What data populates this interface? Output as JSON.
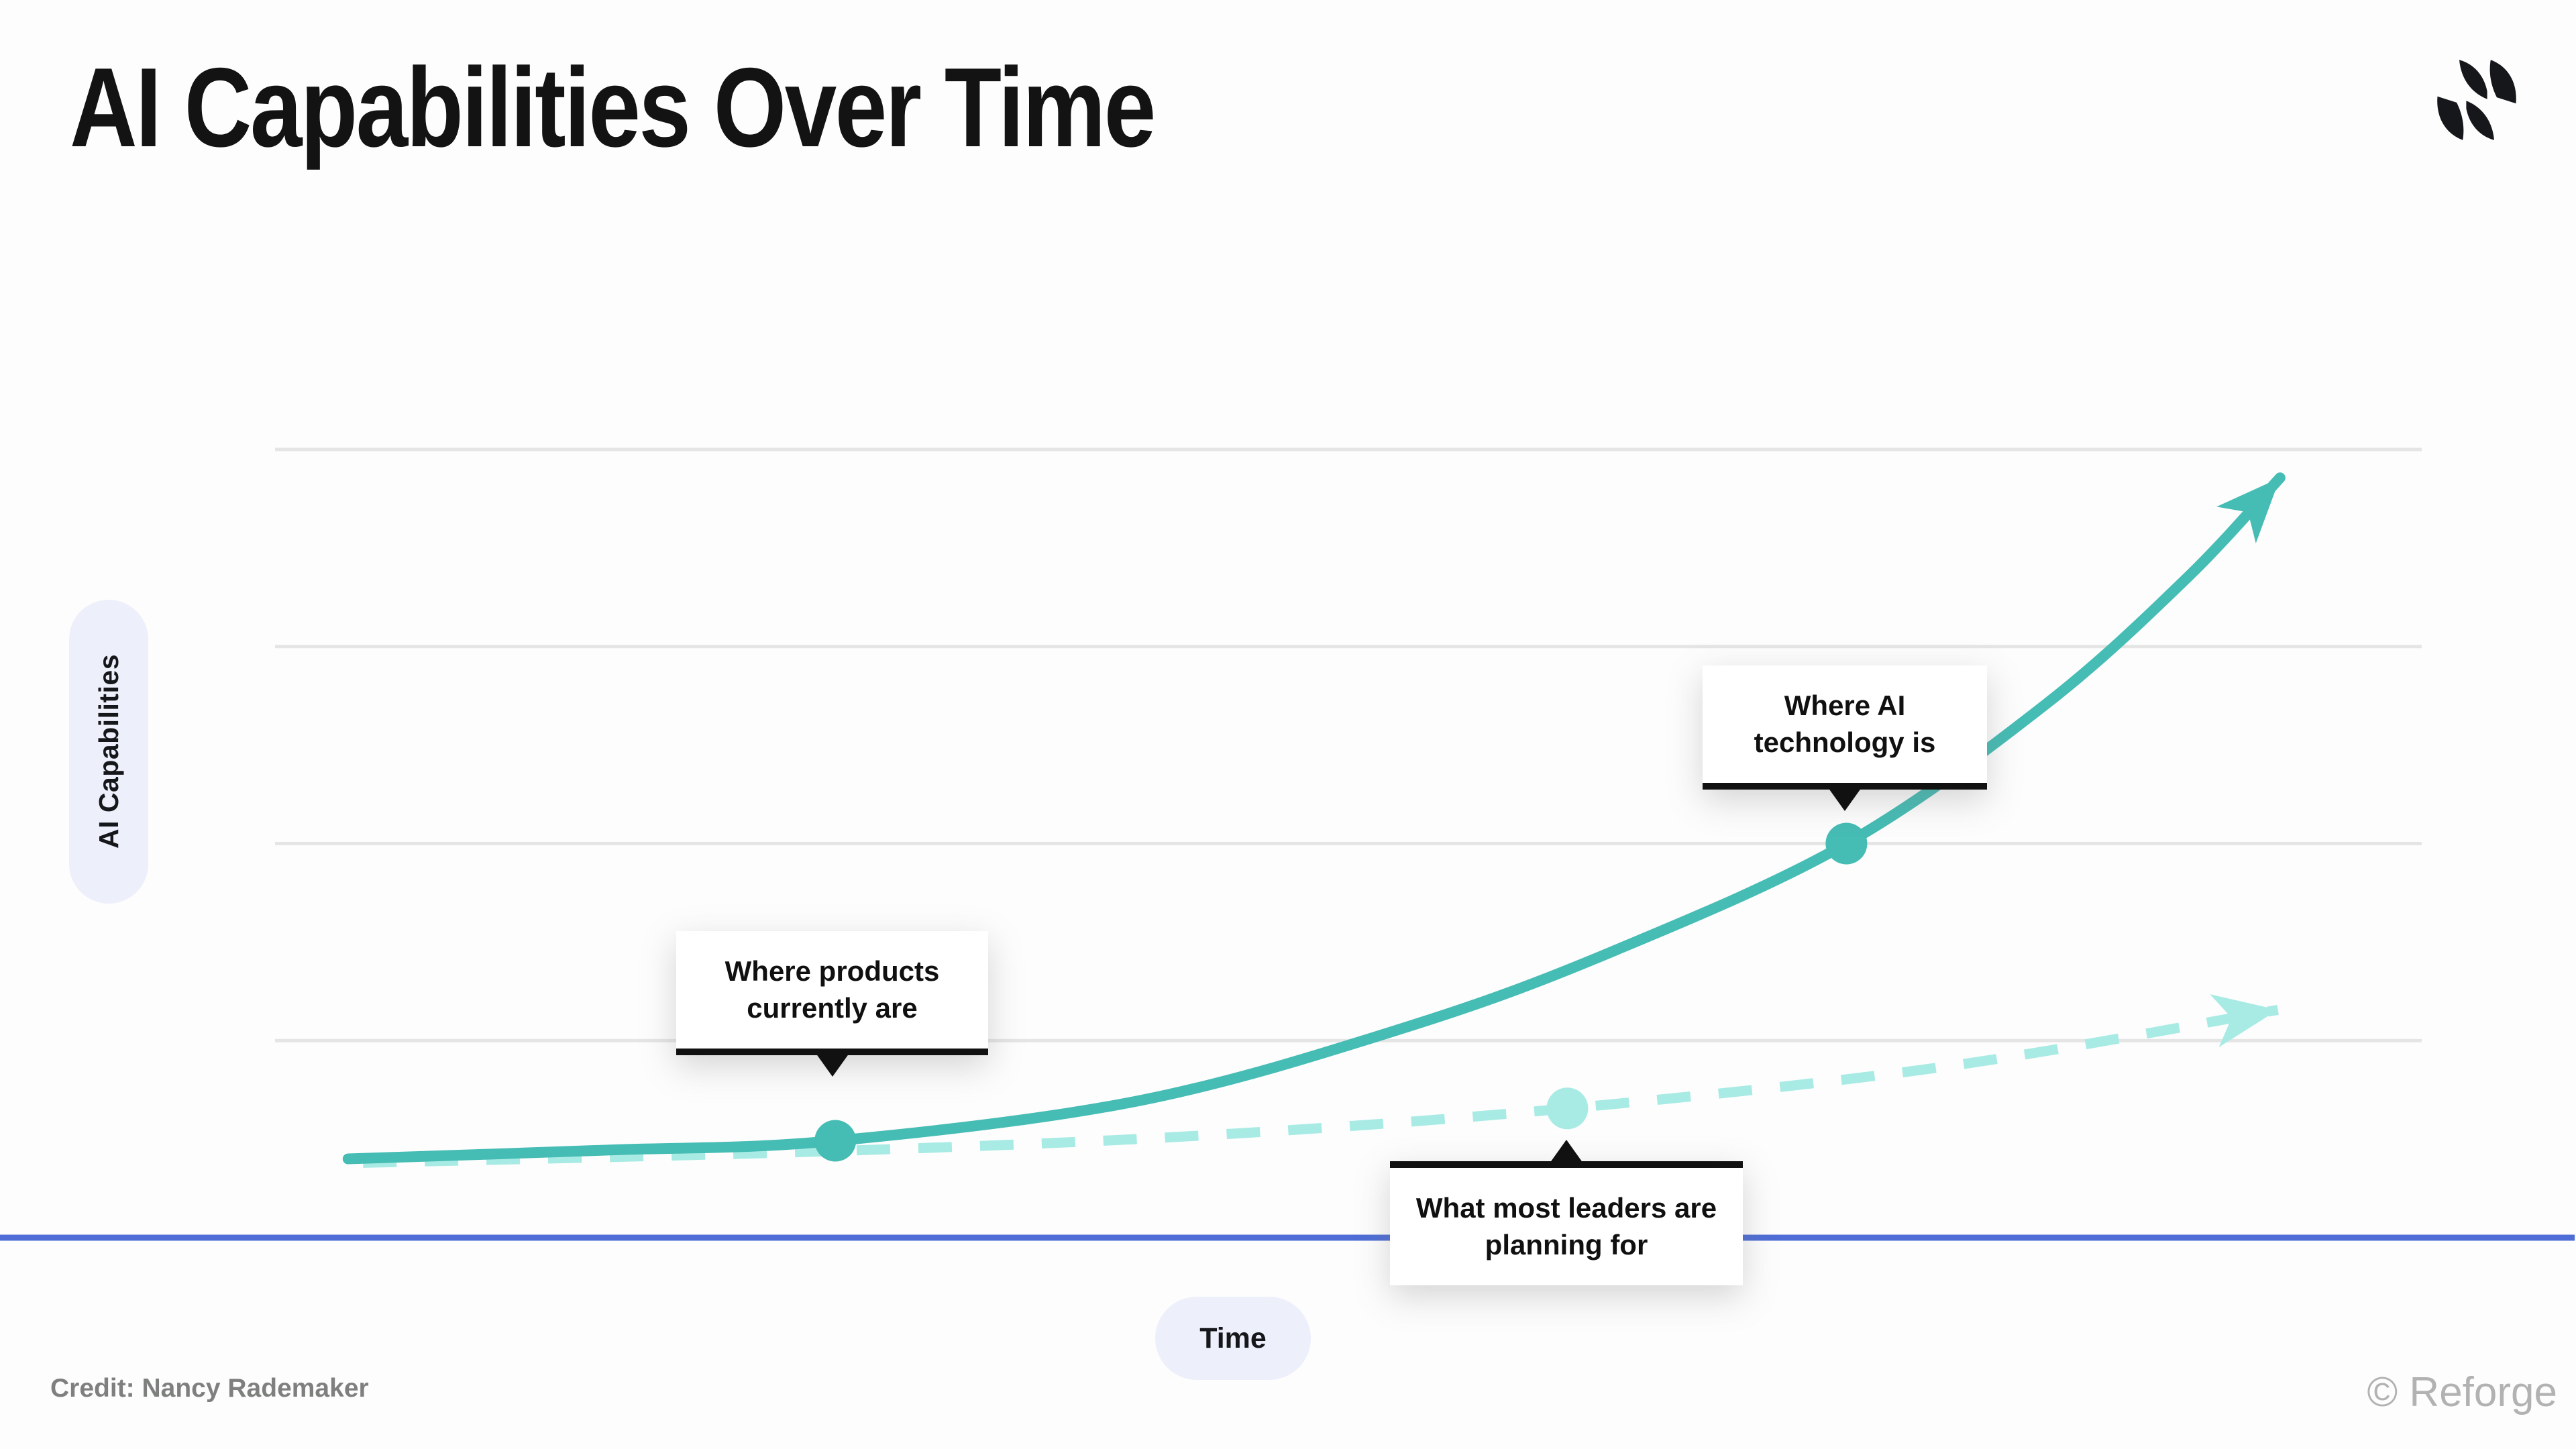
{
  "slide": {
    "title": "AI Capabilities Over Time",
    "credit": "Credit: Nancy Rademaker",
    "copyright": "© Reforge"
  },
  "chart": {
    "y_axis_label": "AI Capabilities",
    "x_axis_label": "Time"
  },
  "annotations": {
    "products": "Where products currently are",
    "ai_tech": "Where AI technology is",
    "leaders": "What most leaders are planning for"
  },
  "colors": {
    "background": "#FDFDFD",
    "title": "#131313",
    "line_actual": "#45BCB4",
    "line_expected": "#A8EBE4",
    "axis": "#4E6DD6",
    "gridline": "#E5E5E5",
    "pill_bg": "#EDEFFB",
    "annotation_border": "#111111",
    "credit": "#7D807D",
    "copyright": "#B2B2B2"
  },
  "chart_data": {
    "type": "line",
    "title": "AI Capabilities Over Time",
    "xlabel": "Time",
    "ylabel": "AI Capabilities",
    "x_tick_labels": [],
    "y_tick_labels": [],
    "horizontal_gridlines": 4,
    "grid": true,
    "legend": false,
    "note": "Conceptual chart with no numeric scales; point coordinates are fractions of the plot area (x: 0 = left edge, 1 = right edge; y: 0 = x-axis, 1 = top gridline).",
    "series": [
      {
        "name": "Where AI technology is",
        "style": "solid",
        "color": "#45BCB4",
        "stroke_width": 16,
        "arrow_end": true,
        "points": [
          [
            0.034,
            0.1
          ],
          [
            0.153,
            0.111
          ],
          [
            0.261,
            0.123
          ],
          [
            0.403,
            0.174
          ],
          [
            0.528,
            0.268
          ],
          [
            0.622,
            0.362
          ],
          [
            0.732,
            0.5
          ],
          [
            0.825,
            0.677
          ],
          [
            0.891,
            0.838
          ],
          [
            0.934,
            0.964
          ]
        ],
        "markers": [
          {
            "x": 0.261,
            "y": 0.123,
            "annotation": "Where products currently are"
          },
          {
            "x": 0.732,
            "y": 0.5,
            "annotation": "Where AI technology is"
          }
        ]
      },
      {
        "name": "What most leaders are planning for",
        "style": "dashed",
        "color": "#A8EBE4",
        "stroke_width": 15,
        "arrow_end": true,
        "points": [
          [
            0.041,
            0.095
          ],
          [
            0.261,
            0.11
          ],
          [
            0.434,
            0.13
          ],
          [
            0.602,
            0.164
          ],
          [
            0.778,
            0.217
          ],
          [
            0.933,
            0.289
          ]
        ],
        "markers": [
          {
            "x": 0.602,
            "y": 0.164,
            "annotation": "What most leaders are planning for"
          }
        ]
      }
    ]
  }
}
